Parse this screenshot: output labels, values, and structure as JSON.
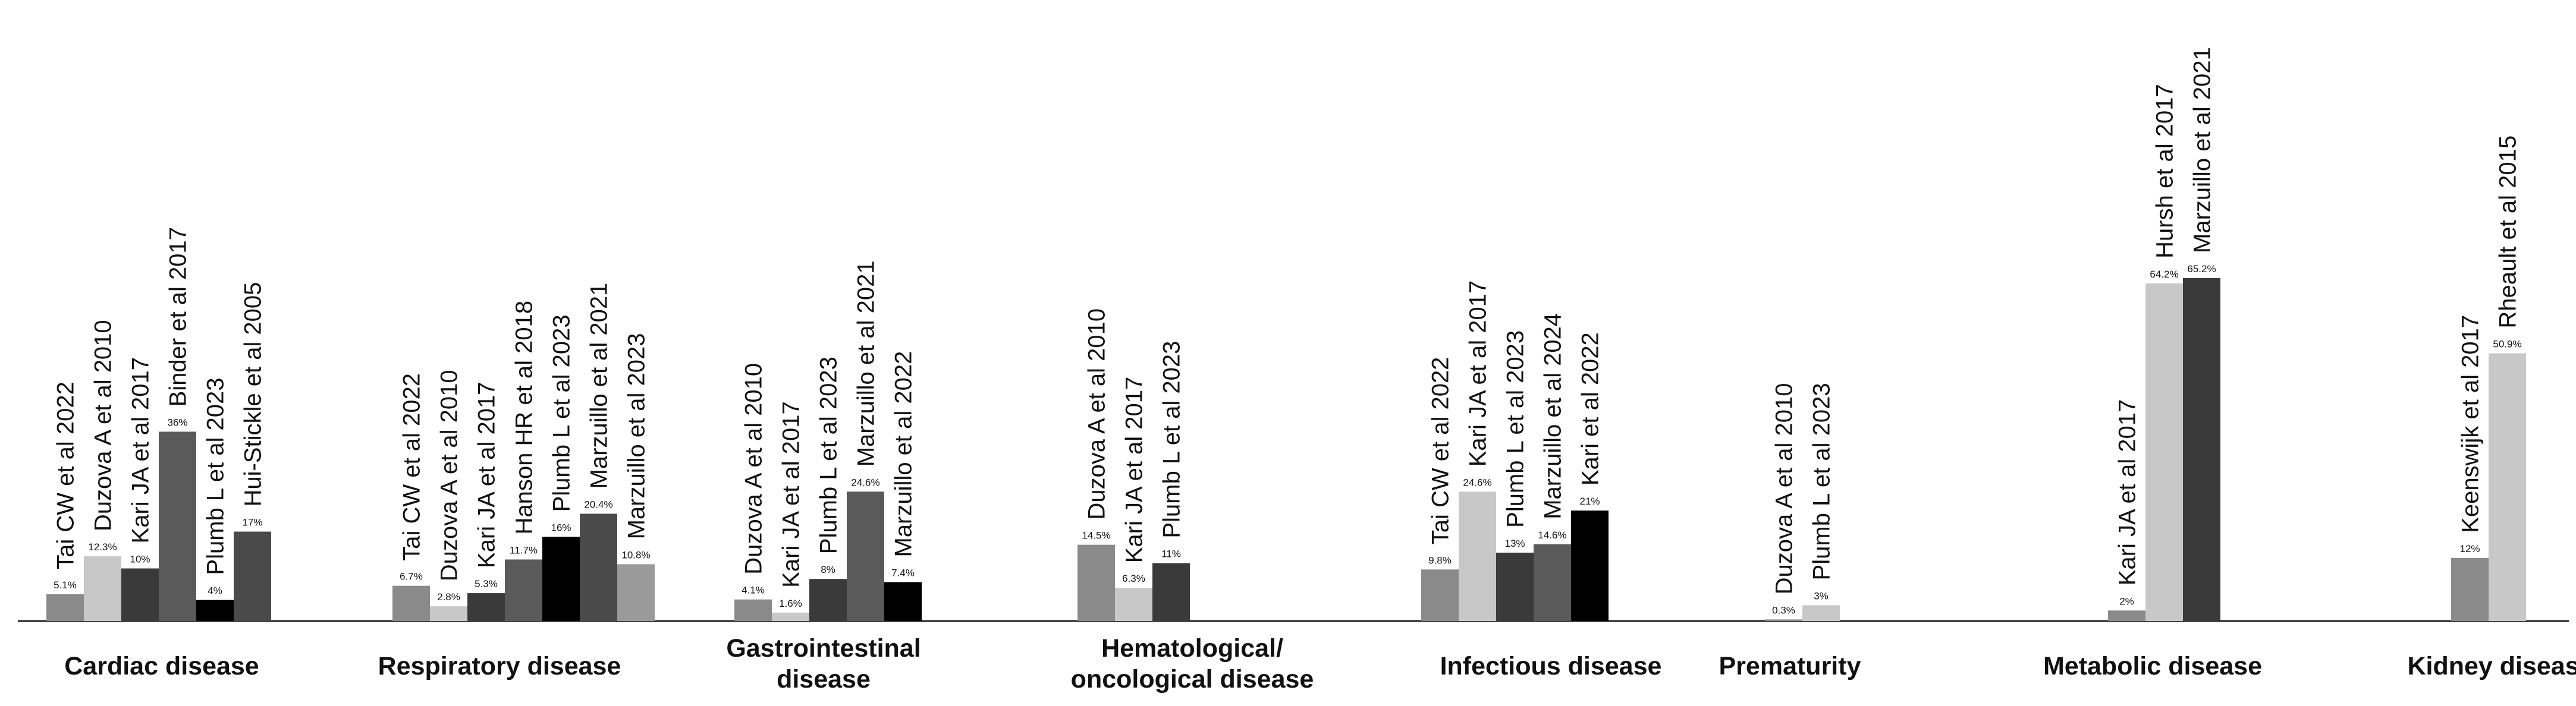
{
  "chart_data": {
    "type": "bar",
    "title": "",
    "xlabel": "",
    "ylabel": "",
    "ylim": [
      0,
      70
    ],
    "grid": false,
    "legend": "none",
    "colors": [
      "#8a8a8a",
      "#c8c8c8",
      "#3a3a3a",
      "#5a5a5a",
      "#000000",
      "#9a9a9a",
      "#4a4a4a"
    ],
    "groups": [
      {
        "label": [
          "Cardiac disease"
        ],
        "bars": [
          {
            "study": "Tai CW et al 2022",
            "value": 5.1,
            "label": "5.1%",
            "color": "#8a8a8a"
          },
          {
            "study": "Duzova A et al 2010",
            "value": 12.3,
            "label": "12.3%",
            "color": "#c8c8c8"
          },
          {
            "study": "Kari JA et al 2017",
            "value": 10,
            "label": "10%",
            "color": "#3a3a3a"
          },
          {
            "study": "Binder et al 2017",
            "value": 36,
            "label": "36%",
            "color": "#5a5a5a"
          },
          {
            "study": "Plumb L et al 2023",
            "value": 4,
            "label": "4%",
            "color": "#000000"
          },
          {
            "study": "Hui-Stickle et al 2005",
            "value": 17,
            "label": "17%",
            "color": "#4a4a4a"
          }
        ]
      },
      {
        "label": [
          "Respiratory disease"
        ],
        "bars": [
          {
            "study": "Tai CW et al 2022",
            "value": 6.7,
            "label": "6.7%",
            "color": "#8a8a8a"
          },
          {
            "study": "Duzova A et al 2010",
            "value": 2.8,
            "label": "2.8%",
            "color": "#c8c8c8"
          },
          {
            "study": "Kari JA et al 2017",
            "value": 5.3,
            "label": "5.3%",
            "color": "#3a3a3a"
          },
          {
            "study": "Hanson HR et al 2018",
            "value": 11.7,
            "label": "11.7%",
            "color": "#5a5a5a"
          },
          {
            "study": "Plumb L et al 2023",
            "value": 16,
            "label": "16%",
            "color": "#000000"
          },
          {
            "study": "Marzuillo et al 2021",
            "value": 20.4,
            "label": "20.4%",
            "color": "#4a4a4a"
          },
          {
            "study": "Marzuillo et al 2023",
            "value": 10.8,
            "label": "10.8%",
            "color": "#9a9a9a"
          }
        ]
      },
      {
        "label": [
          "Gastrointestinal",
          "disease"
        ],
        "bars": [
          {
            "study": "Duzova A et al 2010",
            "value": 4.1,
            "label": "4.1%",
            "color": "#8a8a8a"
          },
          {
            "study": "Kari JA et al 2017",
            "value": 1.6,
            "label": "1.6%",
            "color": "#c8c8c8"
          },
          {
            "study": "Plumb L et al 2023",
            "value": 8,
            "label": "8%",
            "color": "#3a3a3a"
          },
          {
            "study": "Marzuillo et al 2021",
            "value": 24.6,
            "label": "24.6%",
            "color": "#5a5a5a"
          },
          {
            "study": "Marzuillo et al 2022",
            "value": 7.4,
            "label": "7.4%",
            "color": "#000000"
          }
        ]
      },
      {
        "label": [
          "Hematological/",
          "oncological disease"
        ],
        "bars": [
          {
            "study": "Duzova A et al 2010",
            "value": 14.5,
            "label": "14.5%",
            "color": "#8a8a8a"
          },
          {
            "study": "Kari JA et al 2017",
            "value": 6.3,
            "label": "6.3%",
            "color": "#c8c8c8"
          },
          {
            "study": "Plumb L et al 2023",
            "value": 11,
            "label": "11%",
            "color": "#3a3a3a"
          }
        ]
      },
      {
        "label": [
          "Infectious disease"
        ],
        "bars": [
          {
            "study": "Tai CW et al 2022",
            "value": 9.8,
            "label": "9.8%",
            "color": "#8a8a8a"
          },
          {
            "study": "Kari JA et al 2017",
            "value": 24.6,
            "label": "24.6%",
            "color": "#c8c8c8"
          },
          {
            "study": "Plumb L et al 2023",
            "value": 13,
            "label": "13%",
            "color": "#3a3a3a"
          },
          {
            "study": "Marzuillo et al 2024",
            "value": 14.6,
            "label": "14.6%",
            "color": "#5a5a5a"
          },
          {
            "study": "Kari  et al 2022",
            "value": 21,
            "label": "21%",
            "color": "#000000"
          }
        ]
      },
      {
        "label": [
          "Prematurity"
        ],
        "bars": [
          {
            "study": "Duzova A et al 2010",
            "value": 0.3,
            "label": "0.3%",
            "color": "#8a8a8a"
          },
          {
            "study": "Plumb L et al 2023",
            "value": 3,
            "label": "3%",
            "color": "#c8c8c8"
          }
        ]
      },
      {
        "label": [
          "Metabolic disease"
        ],
        "bars": [
          {
            "study": "Kari JA et al 2017",
            "value": 2,
            "label": "2%",
            "color": "#8a8a8a"
          },
          {
            "study": "Hursh et al 2017",
            "value": 64.2,
            "label": "64.2%",
            "color": "#c8c8c8"
          },
          {
            "study": "Marzuillo et al 2021",
            "value": 65.2,
            "label": "65.2%",
            "color": "#3a3a3a"
          }
        ]
      },
      {
        "label": [
          "Kidney disease"
        ],
        "bars": [
          {
            "study": "Keenswijk et al 2017",
            "value": 12,
            "label": "12%",
            "color": "#8a8a8a"
          },
          {
            "study": "Rheault et al 2015",
            "value": 50.9,
            "label": "50.9%",
            "color": "#c8c8c8"
          }
        ]
      }
    ]
  }
}
